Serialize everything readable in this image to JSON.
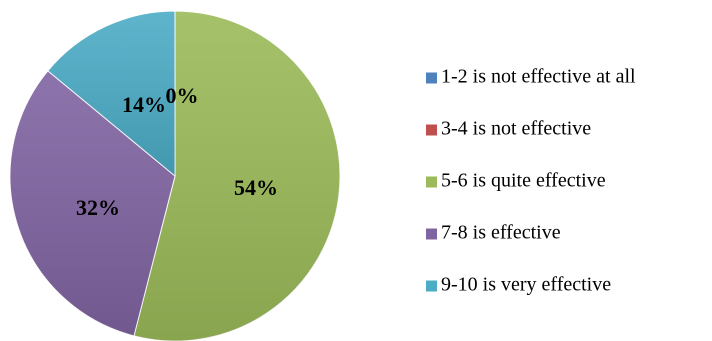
{
  "chart_data": {
    "type": "pie",
    "title": "",
    "slices": [
      {
        "label": " 1-2 is not effective at all",
        "value": 0,
        "display": "",
        "color": "#4F81BD"
      },
      {
        "label": "3-4 is not effective",
        "value": 0,
        "display": "0%",
        "color": "#C0504D"
      },
      {
        "label": "5-6 is quite effective",
        "value": 54,
        "display": "54%",
        "color": "#9BBB59"
      },
      {
        "label": "7-8 is effective",
        "value": 32,
        "display": "32%",
        "color": "#8064A2"
      },
      {
        "label": "9-10 is very effective",
        "value": 14,
        "display": "14%",
        "color": "#4BACC6"
      }
    ],
    "legend_position": "right",
    "start_angle": "12 o'clock",
    "direction": "clockwise"
  }
}
